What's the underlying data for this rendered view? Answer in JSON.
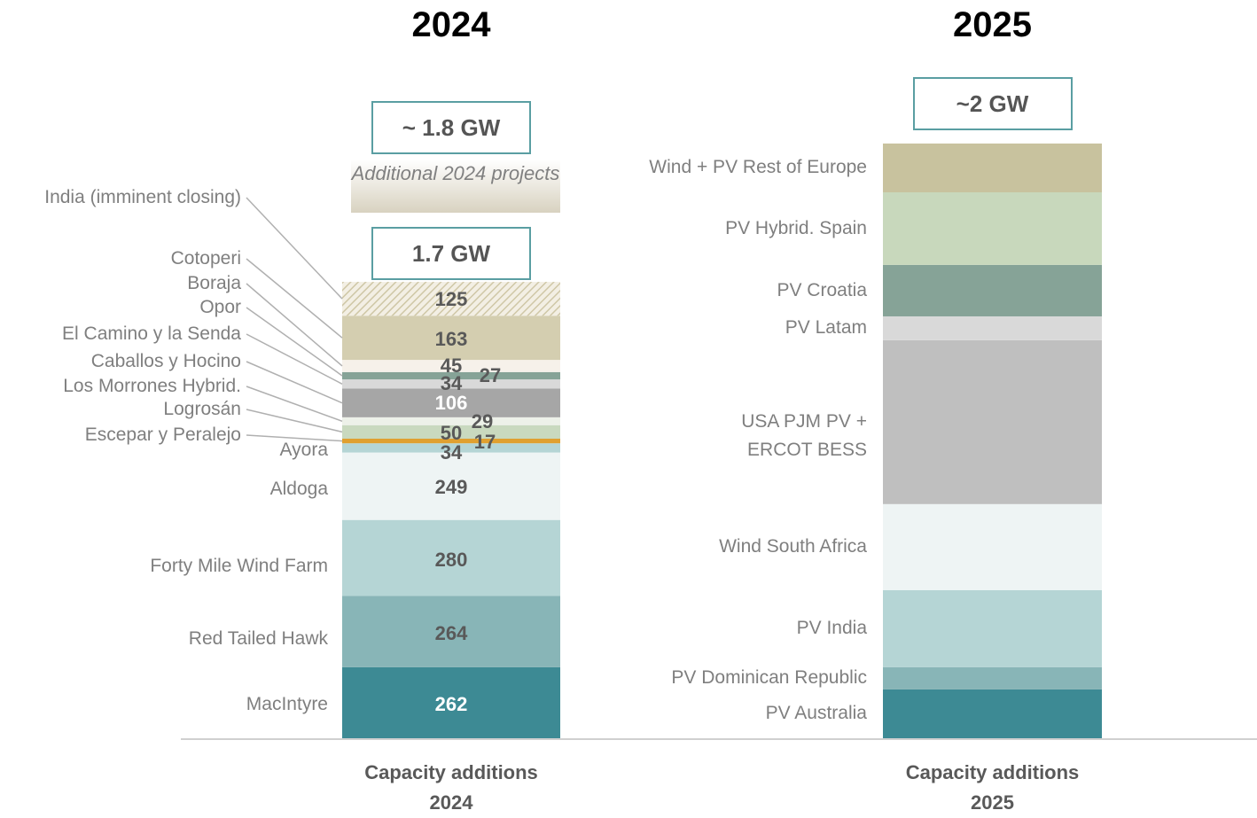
{
  "chart_data": [
    {
      "type": "bar",
      "stacked": true,
      "title": "2024",
      "estimate_label": "~ 1.8 GW",
      "note": "Additional 2024 projects",
      "total_label": "1.7 GW",
      "category": "Capacity additions 2024",
      "series": [
        {
          "name": "MacIntyre",
          "color": "#3d8a94",
          "values": [
            262
          ]
        },
        {
          "name": "Red Tailed Hawk",
          "color": "#88b5b7",
          "values": [
            264
          ]
        },
        {
          "name": "Forty Mile Wind Farm",
          "color": "#b5d5d5",
          "values": [
            280
          ]
        },
        {
          "name": "Aldoga",
          "color": "#eef4f4",
          "values": [
            249
          ]
        },
        {
          "name": "Ayora",
          "color": "#b5d5d5",
          "values": [
            34
          ]
        },
        {
          "name": "Escepar y Peralejo",
          "color": "#e0a030",
          "values": [
            17
          ]
        },
        {
          "name": "Logrosán",
          "color": "#c9d9bf",
          "values": [
            50
          ]
        },
        {
          "name": "Los Morrones Hybrid.",
          "color": "#edf1e9",
          "values": [
            29
          ]
        },
        {
          "name": "Caballos y Hocino",
          "color": "#a6a6a6",
          "values": [
            106
          ]
        },
        {
          "name": "El Camino y la Senda",
          "color": "#d9d9d9",
          "values": [
            34
          ]
        },
        {
          "name": "Opor",
          "color": "#86a397",
          "values": [
            27
          ]
        },
        {
          "name": "Boraja",
          "color": "#f6f1ea",
          "values": [
            45
          ]
        },
        {
          "name": "Cotoperi",
          "color": "#d4ceb0",
          "values": [
            163
          ]
        },
        {
          "name": "India  (imminent closing)",
          "color": "#d4ceb0",
          "pattern": "hatch",
          "values": [
            125
          ]
        }
      ]
    },
    {
      "type": "bar",
      "stacked": true,
      "title": "2025",
      "estimate_label": "~2 GW",
      "category": "Capacity additions 2025",
      "series": [
        {
          "name": "PV Australia",
          "color": "#3d8a94",
          "values": [
            164
          ]
        },
        {
          "name": "PV Dominican Republic",
          "color": "#88b5b7",
          "values": [
            75
          ]
        },
        {
          "name": "PV India",
          "color": "#b5d5d5",
          "values": [
            259
          ]
        },
        {
          "name": "Wind South Africa",
          "color": "#eef4f4",
          "values": [
            289
          ]
        },
        {
          "name": "USA PJM PV + ERCOT BESS",
          "color": "#bfbfbf",
          "values": [
            551
          ]
        },
        {
          "name": "PV Latam",
          "color": "#d9d9d9",
          "values": [
            80
          ]
        },
        {
          "name": "PV Croatia",
          "color": "#86a397",
          "values": [
            173
          ]
        },
        {
          "name": "PV Hybrid. Spain",
          "color": "#c8d8bc",
          "values": [
            244
          ]
        },
        {
          "name": "Wind + PV Rest of Europe",
          "color": "#c8c29e",
          "values": [
            164
          ]
        }
      ]
    }
  ]
}
